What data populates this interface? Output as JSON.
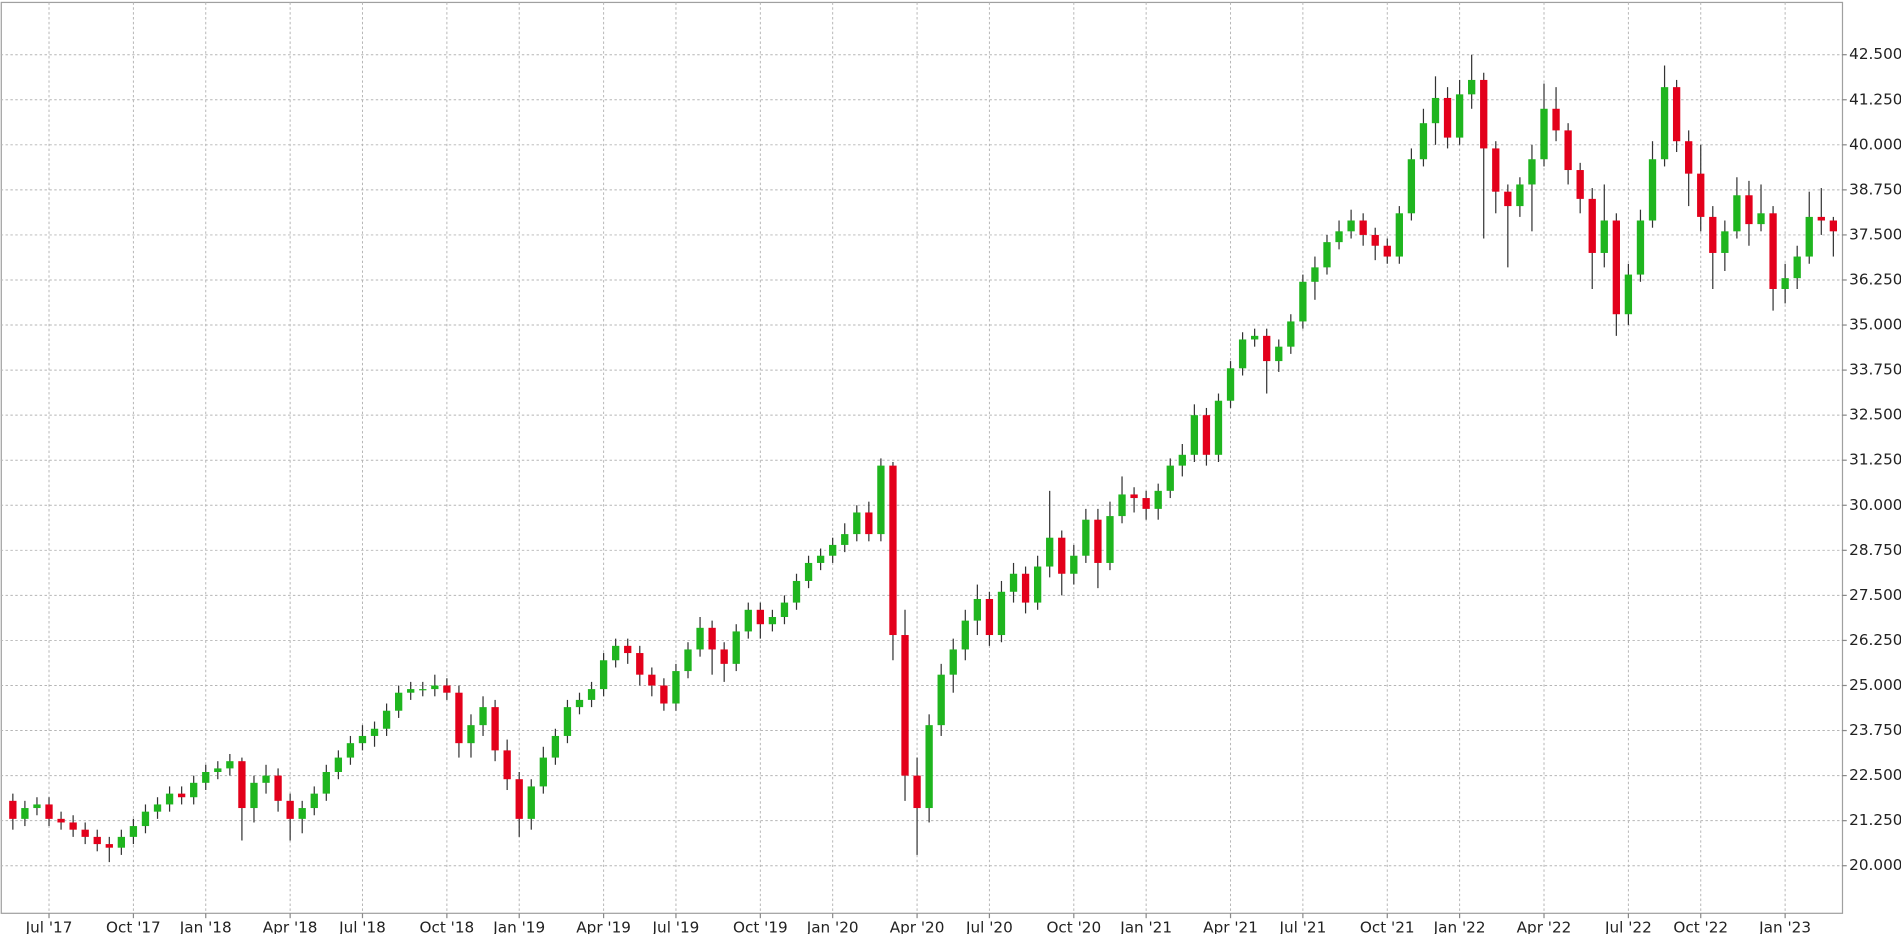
{
  "chart_data": {
    "type": "candlestick",
    "categories": [
      null,
      null,
      null,
      "Jul '17",
      null,
      null,
      null,
      null,
      null,
      null,
      "Oct '17",
      null,
      null,
      null,
      null,
      null,
      "Jan '18",
      null,
      null,
      null,
      null,
      null,
      null,
      "Apr '18",
      null,
      null,
      null,
      null,
      null,
      "Jul '18",
      null,
      null,
      null,
      null,
      null,
      null,
      "Oct '18",
      null,
      null,
      null,
      null,
      null,
      "Jan '19",
      null,
      null,
      null,
      null,
      null,
      null,
      "Apr '19",
      null,
      null,
      null,
      null,
      null,
      "Jul '19",
      null,
      null,
      null,
      null,
      null,
      null,
      "Oct '19",
      null,
      null,
      null,
      null,
      null,
      "Jan '20",
      null,
      null,
      null,
      null,
      null,
      null,
      "Apr '20",
      null,
      null,
      null,
      null,
      null,
      "Jul '20",
      null,
      null,
      null,
      null,
      null,
      null,
      "Oct '20",
      null,
      null,
      null,
      null,
      null,
      "Jan '21",
      null,
      null,
      null,
      null,
      null,
      null,
      "Apr '21",
      null,
      null,
      null,
      null,
      null,
      "Jul '21",
      null,
      null,
      null,
      null,
      null,
      null,
      "Oct '21",
      null,
      null,
      null,
      null,
      null,
      "Jan '22",
      null,
      null,
      null,
      null,
      null,
      null,
      "Apr '22",
      null,
      null,
      null,
      null,
      null,
      null,
      "Jul '22",
      null,
      null,
      null,
      null,
      null,
      "Oct '22",
      null,
      null,
      null,
      null,
      null,
      null,
      "Jan '23",
      null,
      null,
      null,
      null
    ],
    "open": [
      21.8,
      21.3,
      21.6,
      21.7,
      21.3,
      21.2,
      21.0,
      20.8,
      20.6,
      20.5,
      20.8,
      21.1,
      21.5,
      21.7,
      22.0,
      21.9,
      22.3,
      22.6,
      22.7,
      22.9,
      21.6,
      22.3,
      22.5,
      21.8,
      21.3,
      21.6,
      22.0,
      22.6,
      23.0,
      23.4,
      23.6,
      23.8,
      24.3,
      24.8,
      24.9,
      24.9,
      25.0,
      24.8,
      23.4,
      23.9,
      24.4,
      23.2,
      22.4,
      21.3,
      22.2,
      23.0,
      23.6,
      24.4,
      24.6,
      24.9,
      25.7,
      26.1,
      25.9,
      25.3,
      25.0,
      24.5,
      25.4,
      26.0,
      26.6,
      26.0,
      25.6,
      26.5,
      27.1,
      26.7,
      26.9,
      27.3,
      27.9,
      28.4,
      28.6,
      28.9,
      29.2,
      29.8,
      29.2,
      31.1,
      26.4,
      22.5,
      21.6,
      23.9,
      25.3,
      26.0,
      26.8,
      27.4,
      26.4,
      27.6,
      28.1,
      27.3,
      28.3,
      29.1,
      28.1,
      28.6,
      29.6,
      28.4,
      29.7,
      30.3,
      30.2,
      29.9,
      30.4,
      31.1,
      31.4,
      32.5,
      31.4,
      32.9,
      33.8,
      34.6,
      34.7,
      34.0,
      34.4,
      35.1,
      36.2,
      36.6,
      37.3,
      37.6,
      37.9,
      37.5,
      37.2,
      36.9,
      38.1,
      39.6,
      40.6,
      41.3,
      40.2,
      41.4,
      41.8,
      39.9,
      38.7,
      38.3,
      38.9,
      39.6,
      41.0,
      40.4,
      39.3,
      38.5,
      37.0,
      37.9,
      35.3,
      36.4,
      37.9,
      39.6,
      41.6,
      40.1,
      39.2,
      38.0,
      37.0,
      37.6,
      38.6,
      37.8,
      38.1,
      36.0,
      36.3,
      36.9,
      38.0,
      37.9
    ],
    "high": [
      22.0,
      21.8,
      21.9,
      21.9,
      21.5,
      21.4,
      21.2,
      21.0,
      20.8,
      21.0,
      21.3,
      21.7,
      21.9,
      22.2,
      22.2,
      22.5,
      22.8,
      22.9,
      23.1,
      23.0,
      22.5,
      22.8,
      22.7,
      22.0,
      21.8,
      22.2,
      22.8,
      23.2,
      23.6,
      23.9,
      24.0,
      24.5,
      25.0,
      25.1,
      25.1,
      25.3,
      25.2,
      25.0,
      24.2,
      24.7,
      24.6,
      23.5,
      22.6,
      22.4,
      23.3,
      23.8,
      24.6,
      24.8,
      25.1,
      25.9,
      26.3,
      26.3,
      26.1,
      25.5,
      25.2,
      25.6,
      26.2,
      26.9,
      26.8,
      26.2,
      26.7,
      27.3,
      27.3,
      27.1,
      27.5,
      28.1,
      28.6,
      28.8,
      29.1,
      29.5,
      30.0,
      30.1,
      31.3,
      31.2,
      27.1,
      23.0,
      24.2,
      25.6,
      26.3,
      27.1,
      27.8,
      27.6,
      27.9,
      28.4,
      28.3,
      28.6,
      30.4,
      29.3,
      28.9,
      29.9,
      29.9,
      30.1,
      30.8,
      30.5,
      30.4,
      30.6,
      31.3,
      31.7,
      32.8,
      32.7,
      33.1,
      34.0,
      34.8,
      34.9,
      34.9,
      34.6,
      35.3,
      36.4,
      36.9,
      37.5,
      37.9,
      38.2,
      38.1,
      37.7,
      37.4,
      38.3,
      39.9,
      41.0,
      41.9,
      41.6,
      41.8,
      42.5,
      42.0,
      40.1,
      38.9,
      39.1,
      40.0,
      41.7,
      41.6,
      40.6,
      39.5,
      38.8,
      38.9,
      38.1,
      36.7,
      38.2,
      40.1,
      42.2,
      41.8,
      40.4,
      40.0,
      38.3,
      37.9,
      39.1,
      39.0,
      38.9,
      38.3,
      36.7,
      37.2,
      38.7,
      38.8,
      38.0
    ],
    "low": [
      21.0,
      21.1,
      21.4,
      21.1,
      21.0,
      20.8,
      20.6,
      20.4,
      20.1,
      20.3,
      20.6,
      20.9,
      21.3,
      21.5,
      21.7,
      21.7,
      22.1,
      22.4,
      22.5,
      20.7,
      21.2,
      22.0,
      21.5,
      20.7,
      20.9,
      21.4,
      21.8,
      22.4,
      22.8,
      23.2,
      23.3,
      23.6,
      24.1,
      24.6,
      24.7,
      24.7,
      24.6,
      23.0,
      23.0,
      23.6,
      22.9,
      22.1,
      20.8,
      21.0,
      22.0,
      22.8,
      23.4,
      24.2,
      24.4,
      24.7,
      25.5,
      25.6,
      25.0,
      24.7,
      24.3,
      24.3,
      25.2,
      25.8,
      25.3,
      25.1,
      25.4,
      26.3,
      26.3,
      26.5,
      26.7,
      27.1,
      27.7,
      28.2,
      28.4,
      28.7,
      29.0,
      29.0,
      29.0,
      25.7,
      21.8,
      20.3,
      21.2,
      23.6,
      24.8,
      25.7,
      26.4,
      26.1,
      26.2,
      27.3,
      27.0,
      27.1,
      28.0,
      27.5,
      27.8,
      28.4,
      27.7,
      28.2,
      29.5,
      29.8,
      29.6,
      29.6,
      30.2,
      30.8,
      31.2,
      31.1,
      31.2,
      32.7,
      33.6,
      34.4,
      33.1,
      33.7,
      34.2,
      34.9,
      35.7,
      36.4,
      37.1,
      37.4,
      37.2,
      36.8,
      36.7,
      36.7,
      37.9,
      39.4,
      40.0,
      39.9,
      40.0,
      41.0,
      37.4,
      38.1,
      36.6,
      38.0,
      37.6,
      39.4,
      40.1,
      38.9,
      38.1,
      36.0,
      36.6,
      34.7,
      35.0,
      36.2,
      37.7,
      39.4,
      39.8,
      38.3,
      37.6,
      36.0,
      36.5,
      37.4,
      37.2,
      37.6,
      35.4,
      35.6,
      36.0,
      36.7,
      37.5,
      36.9
    ],
    "close": [
      21.3,
      21.6,
      21.7,
      21.3,
      21.2,
      21.0,
      20.8,
      20.6,
      20.5,
      20.8,
      21.1,
      21.5,
      21.7,
      22.0,
      21.9,
      22.3,
      22.6,
      22.7,
      22.9,
      21.6,
      22.3,
      22.5,
      21.8,
      21.3,
      21.6,
      22.0,
      22.6,
      23.0,
      23.4,
      23.6,
      23.8,
      24.3,
      24.8,
      24.9,
      24.9,
      25.0,
      24.8,
      23.4,
      23.9,
      24.4,
      23.2,
      22.4,
      21.3,
      22.2,
      23.0,
      23.6,
      24.4,
      24.6,
      24.9,
      25.7,
      26.1,
      25.9,
      25.3,
      25.0,
      24.5,
      25.4,
      26.0,
      26.6,
      26.0,
      25.6,
      26.5,
      27.1,
      26.7,
      26.9,
      27.3,
      27.9,
      28.4,
      28.6,
      28.9,
      29.2,
      29.8,
      29.2,
      31.1,
      26.4,
      22.5,
      21.6,
      23.9,
      25.3,
      26.0,
      26.8,
      27.4,
      26.4,
      27.6,
      28.1,
      27.3,
      28.3,
      29.1,
      28.1,
      28.6,
      29.6,
      28.4,
      29.7,
      30.3,
      30.2,
      29.9,
      30.4,
      31.1,
      31.4,
      32.5,
      31.4,
      32.9,
      33.8,
      34.6,
      34.7,
      34.0,
      34.4,
      35.1,
      36.2,
      36.6,
      37.3,
      37.6,
      37.9,
      37.5,
      37.2,
      36.9,
      38.1,
      39.6,
      40.6,
      41.3,
      40.2,
      41.4,
      41.8,
      39.9,
      38.7,
      38.3,
      38.9,
      39.6,
      41.0,
      40.4,
      39.3,
      38.5,
      37.0,
      37.9,
      35.3,
      36.4,
      37.9,
      39.6,
      41.6,
      40.1,
      39.2,
      38.0,
      37.0,
      37.6,
      38.6,
      37.8,
      38.1,
      36.0,
      36.3,
      36.9,
      38.0,
      37.9,
      37.6
    ],
    "up_color": "#1fb51f",
    "down_color": "#e3001b",
    "wick_color": "#333333",
    "ylim": [
      18.68,
      43.95
    ],
    "yticks": [
      {
        "value": 20,
        "label": "20.000"
      },
      {
        "value": 21.25,
        "label": "21.250"
      },
      {
        "value": 22.5,
        "label": "22.500"
      },
      {
        "value": 23.75,
        "label": "23.750"
      },
      {
        "value": 25,
        "label": "25.000"
      },
      {
        "value": 26.25,
        "label": "26.250"
      },
      {
        "value": 27.5,
        "label": "27.500"
      },
      {
        "value": 28.75,
        "label": "28.750"
      },
      {
        "value": 30,
        "label": "30.000"
      },
      {
        "value": 31.25,
        "label": "31.250"
      },
      {
        "value": 32.5,
        "label": "32.500"
      },
      {
        "value": 33.75,
        "label": "33.750"
      },
      {
        "value": 35,
        "label": "35.000"
      },
      {
        "value": 36.25,
        "label": "36.250"
      },
      {
        "value": 37.5,
        "label": "37.500"
      },
      {
        "value": 38.75,
        "label": "38.750"
      },
      {
        "value": 40,
        "label": "40.000"
      },
      {
        "value": 41.25,
        "label": "41.250"
      },
      {
        "value": 42.5,
        "label": "42.500"
      }
    ],
    "grid": true,
    "y_axis_side": "right"
  }
}
